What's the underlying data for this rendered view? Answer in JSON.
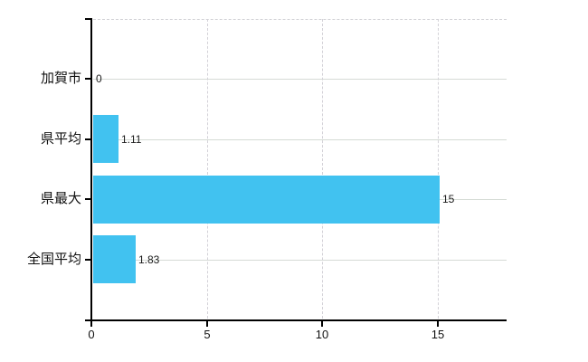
{
  "chart_data": {
    "type": "bar",
    "orientation": "horizontal",
    "title": "",
    "xlabel": "",
    "ylabel": "",
    "legend": "none",
    "grid": true,
    "categories": [
      "加賀市",
      "県平均",
      "県最大",
      "全国平均"
    ],
    "values": [
      0,
      1.11,
      15,
      1.83
    ],
    "value_labels": [
      "0",
      "1.11",
      "15",
      "1.83"
    ],
    "x_ticks": [
      0,
      5,
      10,
      15
    ],
    "x_tick_labels": [
      "0",
      "5",
      "10",
      "15"
    ],
    "xlim": [
      0,
      18
    ]
  },
  "style": {
    "bar_color": "#41c2f0",
    "axis_color": "#000000",
    "grid_color_horizontal": "#d5dbd5",
    "grid_color_vertical": "#d4d2d8",
    "text_color": "#121212",
    "background": "#ffffff"
  }
}
